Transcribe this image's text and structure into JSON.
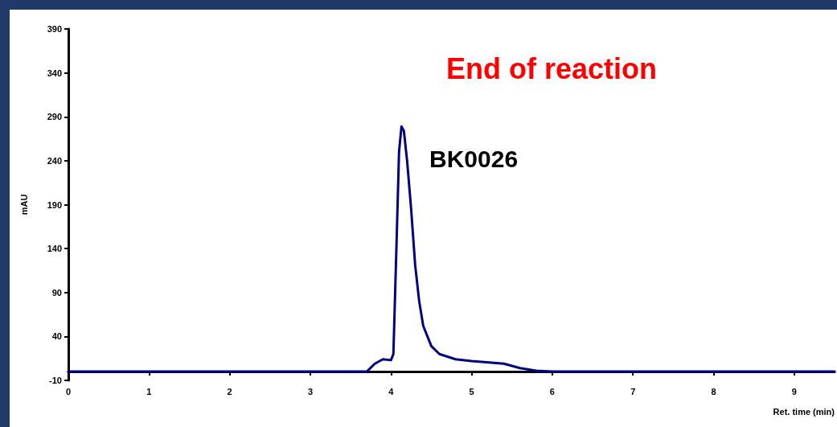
{
  "chart_data": {
    "type": "line",
    "xlabel": "Ret. time (min)",
    "ylabel": "mAU",
    "annotations": [
      "End of reaction",
      "BK0026"
    ],
    "x": [
      0,
      3.2,
      3.7,
      3.8,
      3.9,
      4.0,
      4.03,
      4.07,
      4.1,
      4.13,
      4.16,
      4.2,
      4.25,
      4.3,
      4.35,
      4.4,
      4.5,
      4.6,
      4.8,
      5.0,
      5.4,
      5.6,
      5.8,
      6.0,
      9.5
    ],
    "series": [
      {
        "color": "#000080",
        "values": [
          0,
          0,
          0,
          9,
          14,
          13,
          20,
          149,
          250,
          279,
          274,
          240,
          185,
          121,
          80,
          52,
          29,
          20,
          14,
          12,
          9,
          4,
          1,
          0,
          0
        ]
      }
    ],
    "xlim": [
      0,
      9.5
    ],
    "xticks": [
      0,
      1,
      2,
      3,
      4,
      5,
      6,
      7,
      8,
      9
    ],
    "ylim": [
      -10,
      390
    ],
    "yticks": [
      -10,
      40,
      90,
      140,
      190,
      240,
      290,
      340,
      390
    ],
    "grid": false,
    "marker": "none",
    "line_style": "solid"
  }
}
